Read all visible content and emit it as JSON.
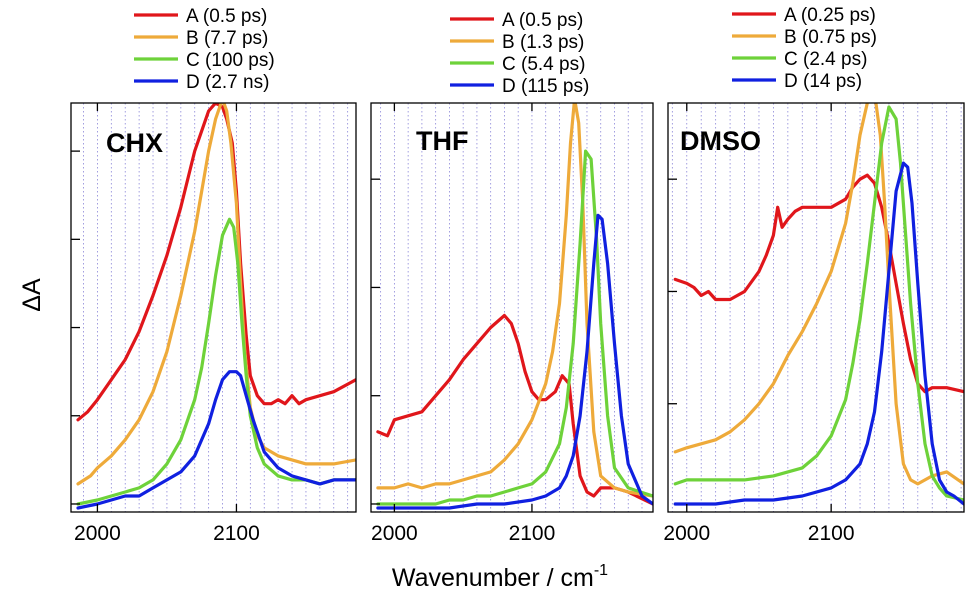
{
  "figure": {
    "ylabel": "ΔA",
    "xlabel_main": "Wavenumber / cm",
    "xlabel_sup": "-1"
  },
  "colors": {
    "A": "#e0161b",
    "B": "#eeaa3a",
    "C": "#6ed23a",
    "D": "#1020e0"
  },
  "chart_data": [
    {
      "type": "line",
      "title": "CHX",
      "xlabel": "Wavenumber / cm-1",
      "ylabel": "ΔA",
      "xlim": [
        1981,
        2186
      ],
      "ylim": [
        -0.02,
        1.0
      ],
      "x_ticks": [
        2000,
        2100
      ],
      "x_ticks_labeled": true,
      "y_ticks": [
        0.0,
        0.22,
        0.44,
        0.66,
        0.88
      ],
      "grid": true,
      "legend_position": "top",
      "series": [
        {
          "name": "A (0.5 ps)",
          "color": "#e0161b",
          "x": [
            1986,
            1993,
            2000,
            2010,
            2020,
            2030,
            2040,
            2050,
            2060,
            2070,
            2080,
            2085,
            2090,
            2093,
            2097,
            2100,
            2103,
            2107,
            2110,
            2115,
            2120,
            2125,
            2130,
            2135,
            2140,
            2145,
            2150,
            2160,
            2170,
            2186
          ],
          "y": [
            0.21,
            0.23,
            0.26,
            0.31,
            0.36,
            0.43,
            0.52,
            0.62,
            0.74,
            0.88,
            0.98,
            1.0,
            0.99,
            0.96,
            0.9,
            0.78,
            0.6,
            0.42,
            0.32,
            0.27,
            0.25,
            0.25,
            0.26,
            0.25,
            0.27,
            0.25,
            0.26,
            0.27,
            0.28,
            0.31
          ]
        },
        {
          "name": "B (7.7 ps)",
          "color": "#eeaa3a",
          "x": [
            1986,
            1995,
            2000,
            2010,
            2020,
            2030,
            2040,
            2050,
            2060,
            2070,
            2075,
            2080,
            2085,
            2090,
            2093,
            2096,
            2100,
            2103,
            2106,
            2110,
            2115,
            2120,
            2130,
            2140,
            2150,
            2160,
            2170,
            2186
          ],
          "y": [
            0.05,
            0.07,
            0.09,
            0.12,
            0.16,
            0.21,
            0.28,
            0.38,
            0.52,
            0.68,
            0.78,
            0.88,
            0.96,
            1.01,
            0.98,
            0.9,
            0.75,
            0.55,
            0.38,
            0.24,
            0.17,
            0.14,
            0.12,
            0.11,
            0.1,
            0.1,
            0.1,
            0.11
          ]
        },
        {
          "name": "C (100 ps)",
          "color": "#6ed23a",
          "x": [
            1986,
            2000,
            2010,
            2020,
            2030,
            2040,
            2050,
            2060,
            2070,
            2075,
            2080,
            2085,
            2090,
            2095,
            2098,
            2101,
            2104,
            2107,
            2110,
            2115,
            2120,
            2130,
            2140,
            2150,
            2160,
            2170,
            2186
          ],
          "y": [
            0.0,
            0.01,
            0.02,
            0.03,
            0.04,
            0.06,
            0.1,
            0.16,
            0.26,
            0.34,
            0.45,
            0.57,
            0.67,
            0.71,
            0.69,
            0.6,
            0.45,
            0.32,
            0.22,
            0.14,
            0.1,
            0.07,
            0.06,
            0.06,
            0.05,
            0.06,
            0.06
          ]
        },
        {
          "name": "D (2.7 ns)",
          "color": "#1020e0",
          "x": [
            1986,
            2000,
            2010,
            2020,
            2030,
            2040,
            2050,
            2060,
            2070,
            2080,
            2085,
            2090,
            2095,
            2100,
            2103,
            2107,
            2112,
            2120,
            2130,
            2140,
            2150,
            2160,
            2170,
            2186
          ],
          "y": [
            -0.01,
            0.0,
            0.01,
            0.02,
            0.02,
            0.04,
            0.06,
            0.08,
            0.12,
            0.2,
            0.26,
            0.31,
            0.33,
            0.33,
            0.32,
            0.27,
            0.21,
            0.13,
            0.09,
            0.07,
            0.06,
            0.05,
            0.06,
            0.06
          ]
        }
      ]
    },
    {
      "type": "line",
      "title": "THF",
      "xlabel": "Wavenumber / cm-1",
      "ylabel": "ΔA",
      "xlim": [
        1983,
        2188
      ],
      "ylim": [
        -0.02,
        1.0
      ],
      "x_ticks": [
        2000,
        2100
      ],
      "x_ticks_labeled": true,
      "y_ticks": [
        0.0,
        0.27,
        0.54,
        0.81
      ],
      "grid": true,
      "legend_position": "top",
      "series": [
        {
          "name": "A (0.5 ps)",
          "color": "#e0161b",
          "x": [
            1988,
            1995,
            2000,
            2010,
            2020,
            2030,
            2040,
            2050,
            2060,
            2070,
            2080,
            2085,
            2090,
            2095,
            2100,
            2105,
            2110,
            2117,
            2122,
            2127,
            2130,
            2135,
            2140,
            2145,
            2150,
            2160,
            2170,
            2188
          ],
          "y": [
            0.18,
            0.17,
            0.21,
            0.22,
            0.23,
            0.27,
            0.31,
            0.36,
            0.4,
            0.44,
            0.47,
            0.45,
            0.4,
            0.33,
            0.28,
            0.26,
            0.26,
            0.28,
            0.32,
            0.3,
            0.2,
            0.07,
            0.03,
            0.02,
            0.04,
            0.04,
            0.03,
            0.0
          ]
        },
        {
          "name": "B (1.3 ps)",
          "color": "#eeaa3a",
          "x": [
            1988,
            2000,
            2010,
            2020,
            2030,
            2040,
            2050,
            2060,
            2070,
            2080,
            2090,
            2100,
            2110,
            2115,
            2120,
            2125,
            2128,
            2131,
            2134,
            2137,
            2140,
            2145,
            2150,
            2160,
            2170,
            2188
          ],
          "y": [
            0.04,
            0.04,
            0.05,
            0.04,
            0.05,
            0.05,
            0.06,
            0.07,
            0.08,
            0.11,
            0.15,
            0.21,
            0.3,
            0.38,
            0.5,
            0.72,
            0.9,
            1.01,
            0.95,
            0.75,
            0.45,
            0.18,
            0.07,
            0.04,
            0.03,
            0.02
          ]
        },
        {
          "name": "C (5.4 ps)",
          "color": "#6ed23a",
          "x": [
            1988,
            2000,
            2010,
            2020,
            2030,
            2040,
            2050,
            2060,
            2070,
            2080,
            2090,
            2100,
            2110,
            2120,
            2125,
            2130,
            2135,
            2139,
            2143,
            2147,
            2150,
            2155,
            2160,
            2170,
            2188
          ],
          "y": [
            0.0,
            0.0,
            0.0,
            0.0,
            0.0,
            0.01,
            0.01,
            0.02,
            0.02,
            0.03,
            0.04,
            0.05,
            0.08,
            0.15,
            0.24,
            0.4,
            0.65,
            0.88,
            0.86,
            0.66,
            0.45,
            0.22,
            0.09,
            0.04,
            0.02
          ]
        },
        {
          "name": "D (115 ps)",
          "color": "#1020e0",
          "x": [
            1988,
            2000,
            2020,
            2040,
            2060,
            2080,
            2100,
            2110,
            2120,
            2125,
            2130,
            2135,
            2140,
            2145,
            2148,
            2151,
            2155,
            2160,
            2165,
            2170,
            2180,
            2188
          ],
          "y": [
            -0.01,
            -0.01,
            -0.01,
            -0.01,
            0.0,
            0.0,
            0.01,
            0.02,
            0.04,
            0.07,
            0.12,
            0.22,
            0.38,
            0.6,
            0.72,
            0.71,
            0.6,
            0.4,
            0.22,
            0.1,
            0.02,
            0.0
          ]
        }
      ]
    },
    {
      "type": "line",
      "title": "DMSO",
      "xlabel": "Wavenumber / cm-1",
      "ylabel": "ΔA",
      "xlim": [
        1987,
        2192
      ],
      "ylim": [
        -0.02,
        1.0
      ],
      "x_ticks": [
        2000,
        2100
      ],
      "x_ticks_labeled": true,
      "y_ticks": [
        0.25,
        0.53,
        0.81
      ],
      "grid": true,
      "legend_position": "top",
      "series": [
        {
          "name": "A (0.25 ps)",
          "color": "#e0161b",
          "x": [
            1992,
            2000,
            2005,
            2010,
            2015,
            2020,
            2030,
            2040,
            2050,
            2055,
            2060,
            2063,
            2066,
            2070,
            2075,
            2080,
            2090,
            2100,
            2110,
            2115,
            2120,
            2125,
            2130,
            2135,
            2140,
            2145,
            2150,
            2155,
            2160,
            2165,
            2170,
            2180,
            2192
          ],
          "y": [
            0.56,
            0.55,
            0.54,
            0.52,
            0.53,
            0.51,
            0.51,
            0.53,
            0.58,
            0.62,
            0.67,
            0.74,
            0.69,
            0.71,
            0.73,
            0.74,
            0.74,
            0.74,
            0.76,
            0.79,
            0.81,
            0.82,
            0.8,
            0.74,
            0.65,
            0.55,
            0.45,
            0.36,
            0.3,
            0.28,
            0.29,
            0.29,
            0.28
          ]
        },
        {
          "name": "B (0.75 ps)",
          "color": "#eeaa3a",
          "x": [
            1992,
            2000,
            2010,
            2020,
            2030,
            2040,
            2050,
            2060,
            2070,
            2080,
            2090,
            2100,
            2110,
            2115,
            2120,
            2125,
            2128,
            2131,
            2134,
            2137,
            2140,
            2145,
            2150,
            2155,
            2160,
            2170,
            2180,
            2192
          ],
          "y": [
            0.13,
            0.14,
            0.15,
            0.16,
            0.18,
            0.21,
            0.25,
            0.3,
            0.37,
            0.43,
            0.5,
            0.58,
            0.7,
            0.8,
            0.92,
            1.0,
            1.02,
            1.0,
            0.92,
            0.75,
            0.55,
            0.25,
            0.1,
            0.06,
            0.05,
            0.07,
            0.08,
            0.05
          ]
        },
        {
          "name": "C (2.4 ps)",
          "color": "#6ed23a",
          "x": [
            1992,
            2000,
            2020,
            2040,
            2060,
            2080,
            2090,
            2100,
            2110,
            2115,
            2120,
            2125,
            2130,
            2135,
            2140,
            2145,
            2148,
            2151,
            2155,
            2160,
            2165,
            2170,
            2175,
            2180,
            2192
          ],
          "y": [
            0.05,
            0.06,
            0.06,
            0.06,
            0.07,
            0.09,
            0.12,
            0.17,
            0.26,
            0.35,
            0.46,
            0.6,
            0.75,
            0.9,
            0.99,
            0.96,
            0.85,
            0.7,
            0.5,
            0.3,
            0.15,
            0.07,
            0.04,
            0.02,
            0.01
          ]
        },
        {
          "name": "D (14 ps)",
          "color": "#1020e0",
          "x": [
            1992,
            2000,
            2020,
            2040,
            2060,
            2080,
            2100,
            2110,
            2120,
            2125,
            2130,
            2135,
            2140,
            2145,
            2150,
            2153,
            2156,
            2160,
            2165,
            2170,
            2175,
            2180,
            2185,
            2192
          ],
          "y": [
            0.0,
            0.0,
            0.0,
            0.01,
            0.01,
            0.02,
            0.04,
            0.06,
            0.1,
            0.15,
            0.23,
            0.38,
            0.58,
            0.78,
            0.85,
            0.84,
            0.75,
            0.55,
            0.32,
            0.15,
            0.06,
            0.03,
            0.02,
            0.0
          ]
        }
      ]
    }
  ]
}
